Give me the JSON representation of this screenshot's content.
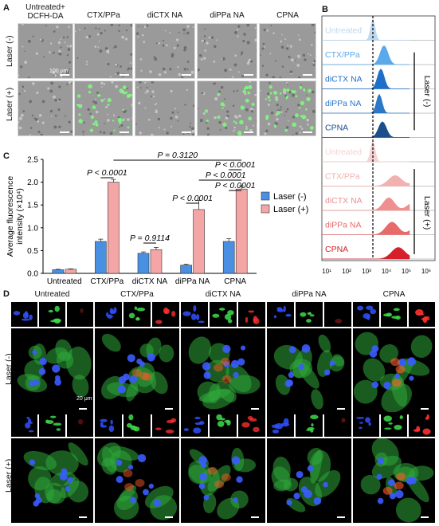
{
  "panelA": {
    "letter": "A",
    "columns": [
      "Untreated+\nDCFH-DA",
      "CTX/PPa",
      "diCTX NA",
      "diPPa NA",
      "CPNA"
    ],
    "rows": [
      "Laser (-)",
      "Laser (+)"
    ],
    "scale_label": "100 μm"
  },
  "panelB": {
    "letter": "B",
    "samples": [
      "Untreated",
      "CTX/PPa",
      "diCTX NA",
      "diPPa NA",
      "CPNA",
      "Untreated",
      "CTX/PPa",
      "diCTX NA",
      "diPPa NA",
      "CPNA"
    ],
    "laser_neg_label": "Laser (-)",
    "laser_pos_label": "Laser (+)",
    "x_ticks": [
      "10¹",
      "10²",
      "10³",
      "10⁴",
      "10⁵",
      "10⁶"
    ],
    "colors_neg": [
      "#bcd9f2",
      "#5aa9ea",
      "#1d6fc9",
      "#2b78c8",
      "#1b4f8c"
    ],
    "colors_pos": [
      "#f6d3d3",
      "#f3b0b0",
      "#ef8f8f",
      "#e96a6a",
      "#d61f2a"
    ]
  },
  "panelC": {
    "letter": "C",
    "pvalues": [
      "P = 0.3120",
      "P < 0.0001",
      "P < 0.0001",
      "P < 0.0001",
      "P = 0.9114",
      "P < 0.0001",
      "P < 0.0001"
    ]
  },
  "chart_data": {
    "type": "bar",
    "categories": [
      "Untreated",
      "CTX/PPa",
      "diCTX NA",
      "diPPa NA",
      "CPNA"
    ],
    "series": [
      {
        "name": "Laser (-)",
        "values": [
          0.08,
          0.7,
          0.44,
          0.18,
          0.7
        ],
        "errors": [
          0.01,
          0.05,
          0.03,
          0.02,
          0.06
        ],
        "color": "#4a90e2"
      },
      {
        "name": "Laser (+)",
        "values": [
          0.09,
          2.0,
          0.52,
          1.4,
          1.85
        ],
        "errors": [
          0.01,
          0.06,
          0.05,
          0.2,
          0.07
        ],
        "color": "#f4a6a6"
      }
    ],
    "ylabel": "Average fluorescence intensity (×10⁴)",
    "ylim": [
      0,
      2.5
    ],
    "yticks": [
      "0.0",
      "0.5",
      "1.0",
      "1.5",
      "2.0",
      "2.5"
    ],
    "legend_position": "right"
  },
  "panelD": {
    "letter": "D",
    "columns": [
      "Untreated",
      "CTX/PPa",
      "diCTX NA",
      "diPPa NA",
      "CPNA"
    ],
    "rows": [
      "Laser (-)",
      "Laser (+)"
    ],
    "scale_label": "20 μm"
  }
}
